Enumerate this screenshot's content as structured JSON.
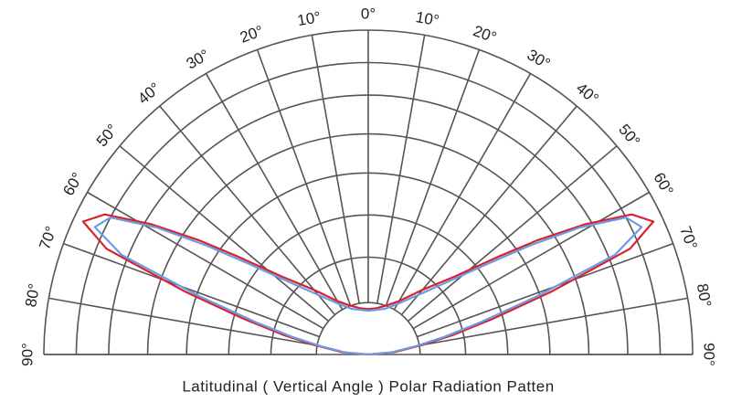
{
  "chart_data": {
    "type": "polar",
    "title": "Latitudinal ( Vertical Angle ) Polar Radiation Patten",
    "x": [
      -90,
      -85,
      -80,
      -77,
      -74,
      -71,
      -68,
      -65,
      -62,
      -59,
      -56,
      -53,
      -48,
      -40,
      -30,
      -20,
      -10,
      0,
      10,
      20,
      30,
      40,
      48,
      53,
      56,
      59,
      62,
      65,
      68,
      71,
      74,
      77,
      80,
      85,
      90
    ],
    "series": [
      {
        "color": "#d9232a",
        "values": [
          0,
          0.08,
          0.17,
          0.27,
          0.4,
          0.6,
          0.87,
          0.97,
          0.92,
          0.78,
          0.63,
          0.5,
          0.36,
          0.26,
          0.19,
          0.16,
          0.145,
          0.14,
          0.145,
          0.16,
          0.19,
          0.26,
          0.36,
          0.5,
          0.63,
          0.78,
          0.92,
          0.97,
          0.87,
          0.6,
          0.4,
          0.27,
          0.17,
          0.08,
          0
        ]
      },
      {
        "color": "#6a9be8",
        "values": [
          0,
          0.07,
          0.15,
          0.24,
          0.36,
          0.55,
          0.82,
          0.93,
          0.9,
          0.76,
          0.6,
          0.47,
          0.34,
          0.24,
          0.18,
          0.15,
          0.14,
          0.135,
          0.14,
          0.15,
          0.18,
          0.24,
          0.34,
          0.47,
          0.6,
          0.76,
          0.9,
          0.93,
          0.82,
          0.55,
          0.36,
          0.24,
          0.15,
          0.07,
          0
        ]
      }
    ],
    "xlim": [
      -90,
      90
    ],
    "xticks": [
      {
        "value": -90,
        "label": "90°"
      },
      {
        "value": -80,
        "label": "80°"
      },
      {
        "value": -70,
        "label": "70°"
      },
      {
        "value": -60,
        "label": "60°"
      },
      {
        "value": -50,
        "label": "50°"
      },
      {
        "value": -40,
        "label": "40°"
      },
      {
        "value": -30,
        "label": "30°"
      },
      {
        "value": -20,
        "label": "20°"
      },
      {
        "value": -10,
        "label": "10°"
      },
      {
        "value": 0,
        "label": "0°"
      },
      {
        "value": 10,
        "label": "10°"
      },
      {
        "value": 20,
        "label": "20°"
      },
      {
        "value": 30,
        "label": "30°"
      },
      {
        "value": 40,
        "label": "40°"
      },
      {
        "value": 50,
        "label": "50°"
      },
      {
        "value": 60,
        "label": "60°"
      },
      {
        "value": 70,
        "label": "70°"
      },
      {
        "value": 80,
        "label": "80°"
      },
      {
        "value": 90,
        "label": "90°"
      }
    ],
    "ylim": [
      0,
      1
    ],
    "yticks": [
      0.16,
      0.3,
      0.43,
      0.56,
      0.68,
      0.8,
      0.9,
      1
    ],
    "grid": true
  }
}
